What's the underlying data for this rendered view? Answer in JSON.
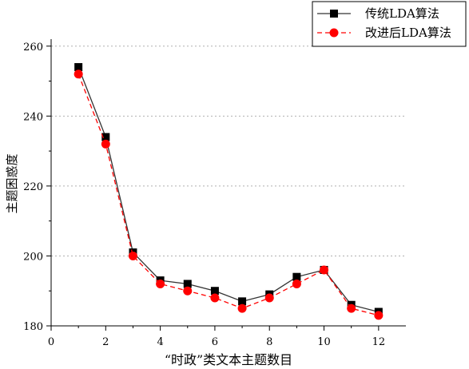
{
  "chart_data": {
    "type": "line",
    "title": "",
    "xlabel": "“时政”类文本主题数目",
    "ylabel": "主题困惑度",
    "xlim": [
      0,
      13
    ],
    "ylim": [
      180,
      262
    ],
    "x_ticks": [
      0,
      2,
      4,
      6,
      8,
      10,
      12
    ],
    "y_ticks": [
      180,
      200,
      220,
      240,
      260
    ],
    "grid": "horizontal-dotted",
    "legend_position": "top-right",
    "x": [
      1,
      2,
      3,
      4,
      5,
      6,
      7,
      8,
      9,
      10,
      11,
      12
    ],
    "series": [
      {
        "name": "传统LDA算法",
        "values": [
          254,
          234,
          201,
          193,
          192,
          190,
          187,
          189,
          194,
          196,
          186,
          184
        ],
        "color": "#000000",
        "line_color": "#333333",
        "marker": "square",
        "line_style": "solid"
      },
      {
        "name": "改进后LDA算法",
        "values": [
          252,
          232,
          200,
          192,
          190,
          188,
          185,
          188,
          192,
          196,
          185,
          183
        ],
        "color": "#ff0000",
        "line_color": "#ff0000",
        "marker": "circle",
        "line_style": "dashed"
      }
    ]
  }
}
